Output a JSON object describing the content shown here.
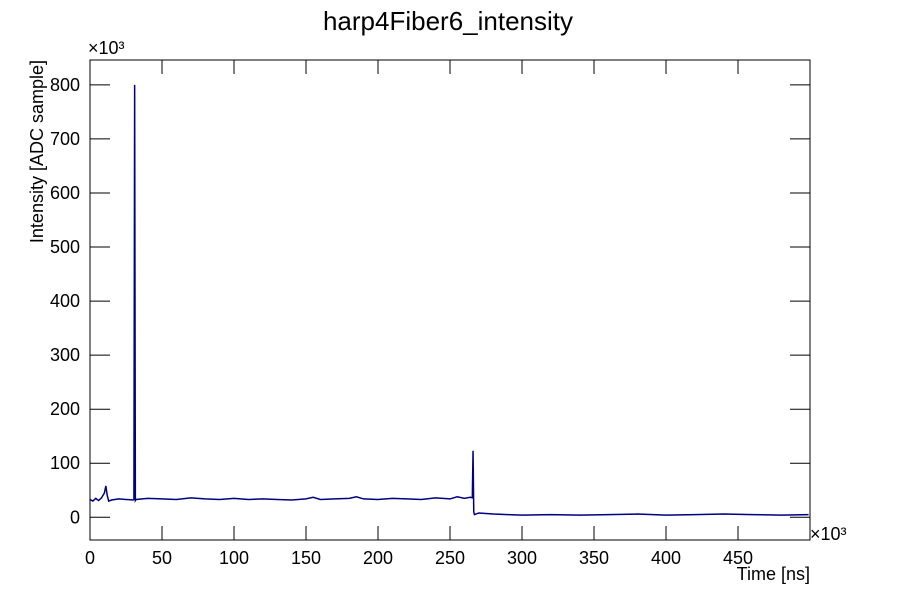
{
  "chart_data": {
    "type": "line",
    "title": "harp4Fiber6_intensity",
    "xlabel": "Time [ns]",
    "ylabel": "Intensity [ADC sample]",
    "x_exponent": "×10³",
    "y_exponent": "×10³",
    "x": [
      0,
      2,
      4,
      6,
      8,
      10,
      11,
      12,
      13,
      15,
      20,
      25,
      30,
      30.5,
      31,
      31.5,
      32,
      40,
      50,
      60,
      70,
      80,
      90,
      100,
      110,
      120,
      130,
      140,
      150,
      155,
      160,
      170,
      180,
      185,
      190,
      200,
      210,
      220,
      230,
      240,
      250,
      255,
      260,
      264,
      265.5,
      266,
      266.5,
      267,
      270,
      280,
      290,
      300,
      320,
      340,
      360,
      380,
      400,
      420,
      440,
      460,
      480,
      499
    ],
    "series": [
      {
        "color": "#000080",
        "values": [
          33,
          30,
          35,
          31,
          36,
          45,
          58,
          40,
          30,
          32,
          34,
          33,
          32,
          33,
          800,
          31,
          33,
          35,
          34,
          33,
          36,
          34,
          33,
          35,
          33,
          34,
          33,
          32,
          34,
          37,
          33,
          34,
          35,
          38,
          34,
          33,
          35,
          34,
          33,
          36,
          34,
          38,
          35,
          37,
          36,
          123,
          10,
          5,
          8,
          6,
          5,
          4,
          5,
          4,
          5,
          6,
          4,
          5,
          6,
          5,
          4,
          5
        ]
      }
    ],
    "xlim": [
      0,
      500
    ],
    "ylim": [
      -42,
      846
    ],
    "xticks": [
      0,
      50,
      100,
      150,
      200,
      250,
      300,
      350,
      400,
      450
    ],
    "yticks": [
      0,
      100,
      200,
      300,
      400,
      500,
      600,
      700,
      800
    ]
  }
}
